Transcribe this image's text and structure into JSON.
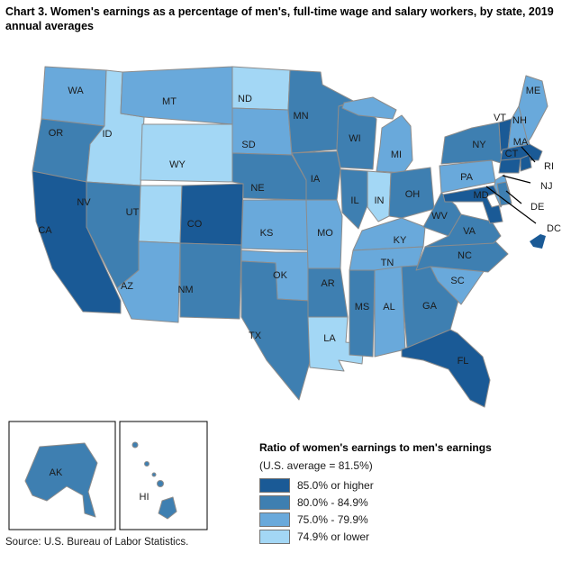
{
  "title": "Chart 3. Women's earnings as a percentage of men's, full-time wage and salary workers, by state, 2019 annual averages",
  "source": "Source: U.S. Bureau of Labor Statistics.",
  "legend": {
    "title": "Ratio of women's earnings to men's earnings",
    "subtitle": "(U.S. average = 81.5%)",
    "bins": [
      {
        "label": "85.0% or higher",
        "color": "#1A5A96"
      },
      {
        "label": "80.0% - 84.9%",
        "color": "#3E7FB1"
      },
      {
        "label": "75.0% - 79.9%",
        "color": "#69A9DB"
      },
      {
        "label": "74.9% or lower",
        "color": "#A3D7F5"
      }
    ]
  },
  "chart_data": {
    "type": "choropleth",
    "geography": "United States, 50 states and District of Columbia (Alaska and Hawaii shown as insets)",
    "measure": "Women's earnings as a percentage of men's, full-time wage and salary workers, 2019 annual averages",
    "us_average_percent": 81.5,
    "bins": [
      "85.0% or higher",
      "80.0% - 84.9%",
      "75.0% - 79.9%",
      "74.9% or lower"
    ],
    "states": [
      {
        "abbr": "WA",
        "bin": "75.0% - 79.9%"
      },
      {
        "abbr": "OR",
        "bin": "80.0% - 84.9%"
      },
      {
        "abbr": "CA",
        "bin": "85.0% or higher"
      },
      {
        "abbr": "ID",
        "bin": "74.9% or lower"
      },
      {
        "abbr": "NV",
        "bin": "80.0% - 84.9%"
      },
      {
        "abbr": "UT",
        "bin": "74.9% or lower"
      },
      {
        "abbr": "AZ",
        "bin": "75.0% - 79.9%"
      },
      {
        "abbr": "MT",
        "bin": "75.0% - 79.9%"
      },
      {
        "abbr": "WY",
        "bin": "74.9% or lower"
      },
      {
        "abbr": "CO",
        "bin": "85.0% or higher"
      },
      {
        "abbr": "NM",
        "bin": "80.0% - 84.9%"
      },
      {
        "abbr": "ND",
        "bin": "74.9% or lower"
      },
      {
        "abbr": "SD",
        "bin": "75.0% - 79.9%"
      },
      {
        "abbr": "NE",
        "bin": "80.0% - 84.9%"
      },
      {
        "abbr": "KS",
        "bin": "75.0% - 79.9%"
      },
      {
        "abbr": "OK",
        "bin": "75.0% - 79.9%"
      },
      {
        "abbr": "TX",
        "bin": "80.0% - 84.9%"
      },
      {
        "abbr": "MN",
        "bin": "80.0% - 84.9%"
      },
      {
        "abbr": "IA",
        "bin": "80.0% - 84.9%"
      },
      {
        "abbr": "MO",
        "bin": "75.0% - 79.9%"
      },
      {
        "abbr": "AR",
        "bin": "80.0% - 84.9%"
      },
      {
        "abbr": "LA",
        "bin": "74.9% or lower"
      },
      {
        "abbr": "WI",
        "bin": "80.0% - 84.9%"
      },
      {
        "abbr": "IL",
        "bin": "80.0% - 84.9%"
      },
      {
        "abbr": "IN",
        "bin": "74.9% or lower"
      },
      {
        "abbr": "MI",
        "bin": "75.0% - 79.9%"
      },
      {
        "abbr": "OH",
        "bin": "80.0% - 84.9%"
      },
      {
        "abbr": "KY",
        "bin": "75.0% - 79.9%"
      },
      {
        "abbr": "TN",
        "bin": "75.0% - 79.9%"
      },
      {
        "abbr": "MS",
        "bin": "80.0% - 84.9%"
      },
      {
        "abbr": "AL",
        "bin": "75.0% - 79.9%"
      },
      {
        "abbr": "GA",
        "bin": "80.0% - 84.9%"
      },
      {
        "abbr": "FL",
        "bin": "85.0% or higher"
      },
      {
        "abbr": "SC",
        "bin": "75.0% - 79.9%"
      },
      {
        "abbr": "NC",
        "bin": "80.0% - 84.9%"
      },
      {
        "abbr": "VA",
        "bin": "80.0% - 84.9%"
      },
      {
        "abbr": "WV",
        "bin": "80.0% - 84.9%"
      },
      {
        "abbr": "PA",
        "bin": "75.0% - 79.9%"
      },
      {
        "abbr": "NY",
        "bin": "80.0% - 84.9%"
      },
      {
        "abbr": "VT",
        "bin": "85.0% or higher"
      },
      {
        "abbr": "NH",
        "bin": "75.0% - 79.9%"
      },
      {
        "abbr": "ME",
        "bin": "75.0% - 79.9%"
      },
      {
        "abbr": "MA",
        "bin": "85.0% or higher"
      },
      {
        "abbr": "CT",
        "bin": "85.0% or higher"
      },
      {
        "abbr": "RI",
        "bin": "85.0% or higher"
      },
      {
        "abbr": "NJ",
        "bin": "75.0% - 79.9%"
      },
      {
        "abbr": "DE",
        "bin": "80.0% - 84.9%"
      },
      {
        "abbr": "MD",
        "bin": "85.0% or higher"
      },
      {
        "abbr": "DC",
        "bin": "85.0% or higher"
      },
      {
        "abbr": "AK",
        "bin": "80.0% - 84.9%"
      },
      {
        "abbr": "HI",
        "bin": "80.0% - 84.9%"
      }
    ]
  }
}
